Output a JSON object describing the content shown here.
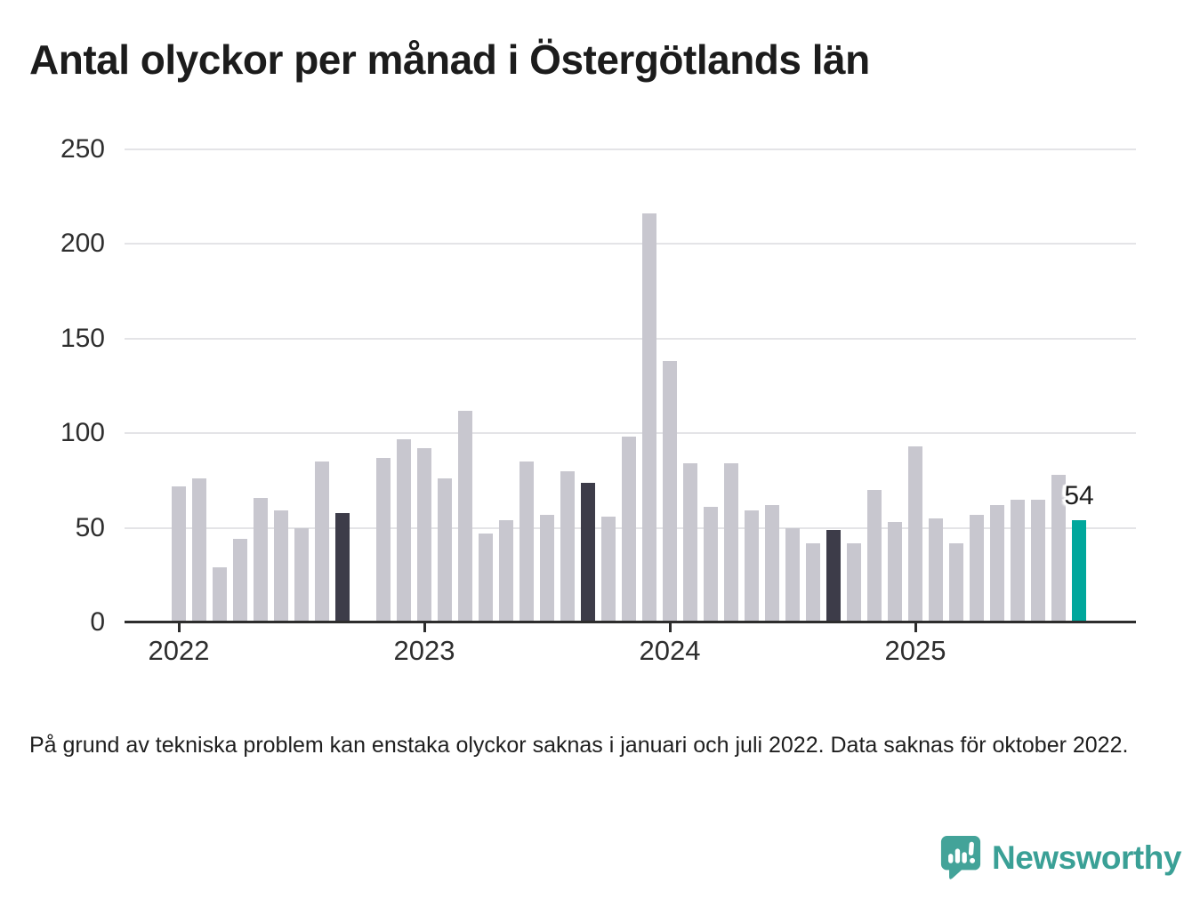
{
  "title": "Antal olyckor per månad i Östergötlands län",
  "footnote": "På grund av tekniska problem kan enstaka olyckor saknas i januari och juli 2022. Data saknas för oktober 2022.",
  "logo": {
    "text": "Newsworthy"
  },
  "colors": {
    "bar": "#c8c7cf",
    "highlight_dark": "#3d3c49",
    "highlight_current": "#00a79c",
    "axis": "#2d2d2d",
    "grid": "#e4e4e7",
    "logo": "#3aa096"
  },
  "chart_data": {
    "type": "bar",
    "title": "Antal olyckor per månad i Östergötlands län",
    "xlabel": "",
    "ylabel": "",
    "ylim": [
      0,
      250
    ],
    "yticks": [
      0,
      50,
      100,
      150,
      200,
      250
    ],
    "grid": true,
    "legend": "none",
    "year_labels": [
      "2022",
      "2023",
      "2024",
      "2025"
    ],
    "annotation": {
      "text": "54",
      "month": "2025-09"
    },
    "months": [
      {
        "month": "2022-01",
        "value": 72,
        "type": "normal"
      },
      {
        "month": "2022-02",
        "value": 76,
        "type": "normal"
      },
      {
        "month": "2022-03",
        "value": 29,
        "type": "normal"
      },
      {
        "month": "2022-04",
        "value": 44,
        "type": "normal"
      },
      {
        "month": "2022-05",
        "value": 66,
        "type": "normal"
      },
      {
        "month": "2022-06",
        "value": 59,
        "type": "normal"
      },
      {
        "month": "2022-07",
        "value": 50,
        "type": "normal"
      },
      {
        "month": "2022-08",
        "value": 85,
        "type": "normal"
      },
      {
        "month": "2022-09",
        "value": 58,
        "type": "reference"
      },
      {
        "month": "2022-10",
        "value": null,
        "type": "missing"
      },
      {
        "month": "2022-11",
        "value": 87,
        "type": "normal"
      },
      {
        "month": "2022-12",
        "value": 97,
        "type": "normal"
      },
      {
        "month": "2023-01",
        "value": 92,
        "type": "normal"
      },
      {
        "month": "2023-02",
        "value": 76,
        "type": "normal"
      },
      {
        "month": "2023-03",
        "value": 112,
        "type": "normal"
      },
      {
        "month": "2023-04",
        "value": 47,
        "type": "normal"
      },
      {
        "month": "2023-05",
        "value": 54,
        "type": "normal"
      },
      {
        "month": "2023-06",
        "value": 85,
        "type": "normal"
      },
      {
        "month": "2023-07",
        "value": 57,
        "type": "normal"
      },
      {
        "month": "2023-08",
        "value": 80,
        "type": "normal"
      },
      {
        "month": "2023-09",
        "value": 74,
        "type": "reference"
      },
      {
        "month": "2023-10",
        "value": 56,
        "type": "normal"
      },
      {
        "month": "2023-11",
        "value": 98,
        "type": "normal"
      },
      {
        "month": "2023-12",
        "value": 216,
        "type": "normal"
      },
      {
        "month": "2024-01",
        "value": 138,
        "type": "normal"
      },
      {
        "month": "2024-02",
        "value": 84,
        "type": "normal"
      },
      {
        "month": "2024-03",
        "value": 61,
        "type": "normal"
      },
      {
        "month": "2024-04",
        "value": 84,
        "type": "normal"
      },
      {
        "month": "2024-05",
        "value": 59,
        "type": "normal"
      },
      {
        "month": "2024-06",
        "value": 62,
        "type": "normal"
      },
      {
        "month": "2024-07",
        "value": 50,
        "type": "normal"
      },
      {
        "month": "2024-08",
        "value": 42,
        "type": "normal"
      },
      {
        "month": "2024-09",
        "value": 49,
        "type": "reference"
      },
      {
        "month": "2024-10",
        "value": 42,
        "type": "normal"
      },
      {
        "month": "2024-11",
        "value": 70,
        "type": "normal"
      },
      {
        "month": "2024-12",
        "value": 53,
        "type": "normal"
      },
      {
        "month": "2025-01",
        "value": 93,
        "type": "normal"
      },
      {
        "month": "2025-02",
        "value": 55,
        "type": "normal"
      },
      {
        "month": "2025-03",
        "value": 42,
        "type": "normal"
      },
      {
        "month": "2025-04",
        "value": 57,
        "type": "normal"
      },
      {
        "month": "2025-05",
        "value": 62,
        "type": "normal"
      },
      {
        "month": "2025-06",
        "value": 65,
        "type": "normal"
      },
      {
        "month": "2025-07",
        "value": 65,
        "type": "normal"
      },
      {
        "month": "2025-08",
        "value": 78,
        "type": "normal"
      },
      {
        "month": "2025-09",
        "value": 54,
        "type": "latest"
      }
    ]
  }
}
